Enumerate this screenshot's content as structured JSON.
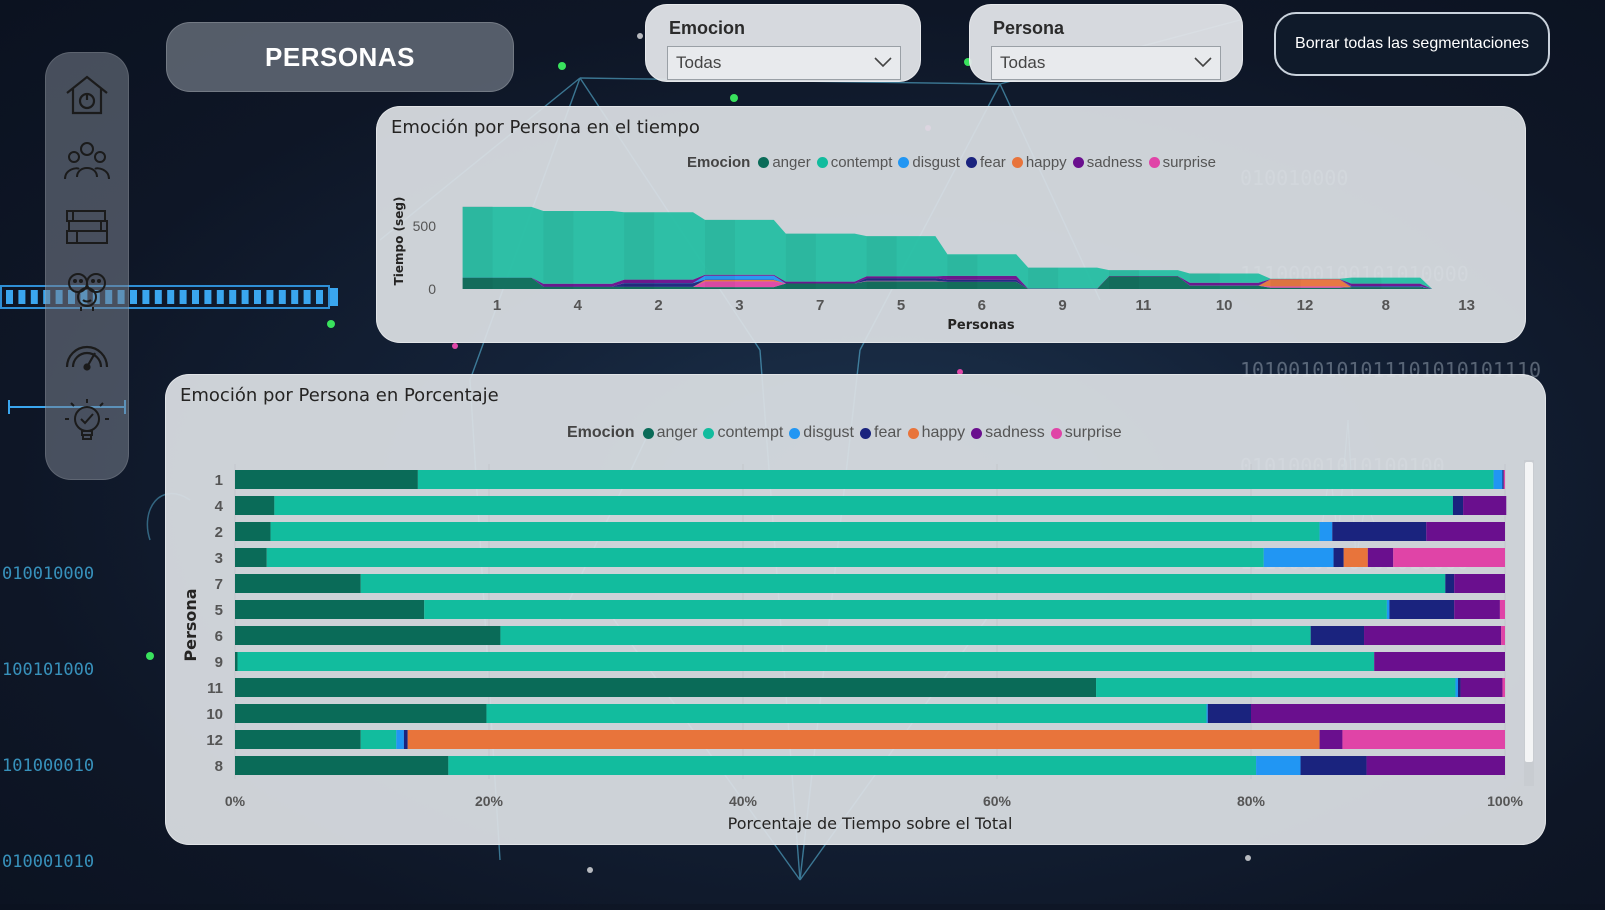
{
  "page": {
    "title": "PERSONAS"
  },
  "nav": [
    {
      "icon": "home-icon"
    },
    {
      "icon": "people-group-icon"
    },
    {
      "icon": "books-icon"
    },
    {
      "icon": "faces-icon"
    },
    {
      "icon": "speedometer-icon"
    },
    {
      "icon": "lightbulb-check-icon"
    }
  ],
  "slicers": {
    "emocion": {
      "label": "Emocion",
      "value": "Todas"
    },
    "persona": {
      "label": "Persona",
      "value": "Todas"
    }
  },
  "clear_button": {
    "label": "Borrar todas las segmentaciones"
  },
  "background_binary": {
    "left": [
      "010010000",
      "100101000",
      "101000010",
      "010001010"
    ],
    "right": [
      "010010000",
      "1110000100101010000",
      "1010010101011101010101110",
      "01010001010100100",
      "1110000100101010000"
    ]
  },
  "colors": {
    "anger": "#0a6b58",
    "contempt": "#12bc9e",
    "disgust": "#2196f3",
    "fear": "#1a237e",
    "happy": "#e8743b",
    "sadness": "#6a0f8e",
    "surprise": "#e044a7"
  },
  "chart_data": [
    {
      "type": "area",
      "title": "Emoción por Persona en el tiempo",
      "legend_title": "Emocion",
      "legend_position": "top-center",
      "series_names": [
        "anger",
        "contempt",
        "disgust",
        "fear",
        "happy",
        "sadness",
        "surprise"
      ],
      "xlabel": "Personas",
      "ylabel": "Tiempo (seg)",
      "categories": [
        "1",
        "4",
        "2",
        "3",
        "7",
        "5",
        "6",
        "9",
        "11",
        "10",
        "12",
        "8",
        "13"
      ],
      "ylim": [
        0,
        660
      ],
      "yticks": [
        0,
        500
      ],
      "totals": [
        660,
        620,
        610,
        550,
        440,
        420,
        270,
        170,
        150,
        130,
        80,
        90,
        0
      ],
      "series_values": {
        "anger": [
          90,
          17,
          17,
          15,
          44,
          62,
          56,
          0,
          100,
          26,
          10,
          15,
          0
        ],
        "contempt": [
          562,
          578,
          535,
          437,
          381,
          319,
          172,
          167,
          47,
          73,
          2,
          47,
          0
        ],
        "disgust": [
          1,
          0,
          1,
          30,
          0,
          0,
          0,
          0,
          0,
          0,
          0,
          3,
          0
        ],
        "fear": [
          0,
          3,
          30,
          3,
          0,
          20,
          17,
          0,
          0,
          3,
          0,
          5,
          0
        ],
        "happy": [
          0,
          0,
          0,
          11,
          0,
          0,
          0,
          0,
          0,
          0,
          57,
          0,
          0
        ],
        "sadness": [
          0,
          22,
          27,
          8,
          15,
          15,
          30,
          3,
          3,
          21,
          2,
          20,
          0
        ],
        "surprise": [
          0,
          0,
          0,
          46,
          0,
          4,
          1,
          0,
          0,
          0,
          11,
          0,
          0
        ]
      }
    },
    {
      "type": "bar",
      "orientation": "horizontal",
      "stacked": "100%",
      "title": "Emoción por Persona en Porcentaje",
      "legend_title": "Emocion",
      "legend_position": "top-center",
      "xlabel": "Porcentaje de Tiempo sobre el Total",
      "ylabel": "Persona",
      "xlim": [
        0,
        100
      ],
      "xticks": [
        "0%",
        "20%",
        "40%",
        "60%",
        "80%",
        "100%"
      ],
      "categories": [
        "1",
        "4",
        "2",
        "3",
        "7",
        "5",
        "6",
        "9",
        "11",
        "10",
        "12",
        "8"
      ],
      "series": [
        {
          "name": "anger",
          "values": [
            14.4,
            3.1,
            2.8,
            2.5,
            9.9,
            14.9,
            20.9,
            0.2,
            67.8,
            19.8,
            9.9,
            16.8
          ]
        },
        {
          "name": "contempt",
          "values": [
            84.7,
            92.8,
            82.6,
            78.5,
            85.4,
            75.8,
            63.8,
            89.5,
            28.3,
            56.7,
            2.8,
            63.6
          ]
        },
        {
          "name": "disgust",
          "values": [
            0.7,
            0.0,
            1.0,
            5.5,
            0.0,
            0.2,
            0.0,
            0.0,
            0.2,
            0.1,
            0.6,
            3.5
          ]
        },
        {
          "name": "fear",
          "values": [
            0.1,
            0.8,
            7.4,
            0.8,
            0.7,
            5.1,
            4.2,
            0.0,
            0.2,
            3.4,
            0.3,
            5.2
          ]
        },
        {
          "name": "happy",
          "values": [
            0.0,
            0.0,
            0.0,
            1.9,
            0.0,
            0.0,
            0.0,
            0.0,
            0.0,
            0.0,
            71.8,
            0.0
          ]
        },
        {
          "name": "sadness",
          "values": [
            0.0,
            3.4,
            6.2,
            2.0,
            4.0,
            3.6,
            10.8,
            10.3,
            3.3,
            20.0,
            1.8,
            10.9
          ]
        },
        {
          "name": "surprise",
          "values": [
            0.1,
            0.0,
            0.0,
            8.8,
            0.0,
            0.4,
            0.3,
            0.0,
            0.2,
            0.0,
            12.8,
            0.0
          ]
        }
      ]
    }
  ]
}
